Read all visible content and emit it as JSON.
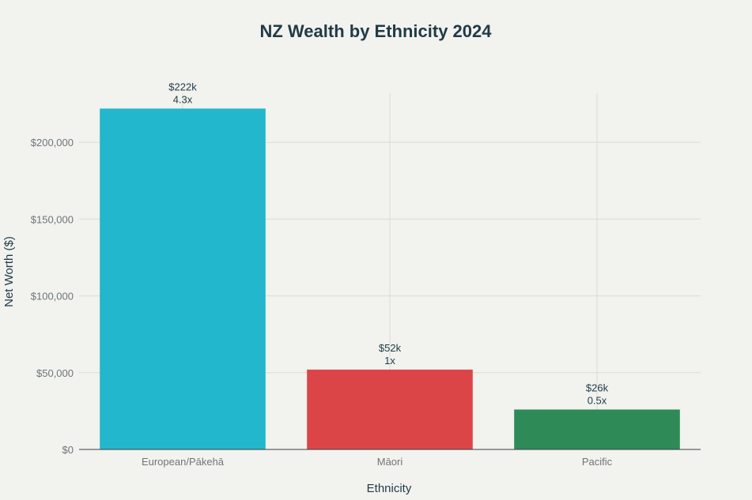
{
  "chart_data": {
    "type": "bar",
    "title": "NZ Wealth by Ethnicity 2024",
    "xlabel": "Ethnicity",
    "ylabel": "Net Worth ($)",
    "categories": [
      "European/Pākehā",
      "Māori",
      "Pacific"
    ],
    "values": [
      222000,
      52000,
      26000
    ],
    "value_labels": [
      "$222k",
      "$52k",
      "$26k"
    ],
    "ratio_labels": [
      "4.3x",
      "1x",
      "0.5x"
    ],
    "colors": [
      "#22b7cc",
      "#dc4548",
      "#2e8b57"
    ],
    "ylim": [
      0,
      232000
    ],
    "yticks": [
      0,
      50000,
      100000,
      150000,
      200000
    ],
    "ytick_labels": [
      "$0",
      "$50,000",
      "$100,000",
      "$150,000",
      "$200,000"
    ],
    "grid": true,
    "legend": "none"
  }
}
